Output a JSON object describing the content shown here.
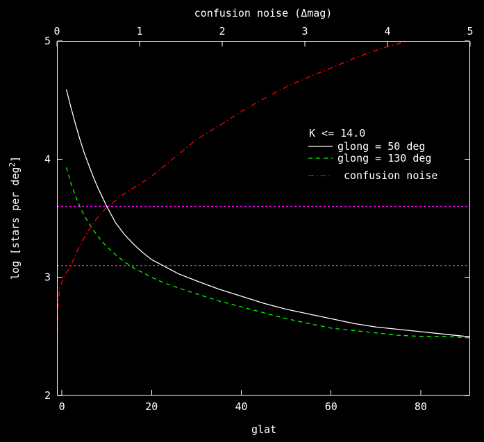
{
  "figure": {
    "background": "#000000",
    "foreground": "#ffffff",
    "axes": {
      "top": {
        "title": "confusion noise (Δmag)",
        "tick_labels": [
          "0",
          "1",
          "2",
          "3",
          "4",
          "5"
        ],
        "tick_values": [
          0,
          1,
          2,
          3,
          4,
          5
        ]
      },
      "bottom": {
        "title": "glat",
        "tick_labels": [
          "0",
          "20",
          "40",
          "60",
          "80"
        ],
        "tick_values": [
          0,
          20,
          40,
          60,
          80
        ]
      },
      "left": {
        "title_prefix": "log [stars per deg",
        "title_sup": "2",
        "title_suffix": "]",
        "tick_labels": [
          "5",
          "4",
          "3",
          "2"
        ],
        "tick_values": [
          5,
          4,
          3,
          2
        ]
      }
    },
    "legend": {
      "header": "K <= 14.0",
      "items": [
        {
          "label": "glong = 50 deg",
          "color": "#ffffff",
          "style": "solid"
        },
        {
          "label": "glong = 130 deg",
          "color": "#00ff00",
          "style": "dashed"
        },
        {
          "label": "confusion noise",
          "color": "#ff0000",
          "style": "dashdot"
        }
      ]
    }
  },
  "chart_data": {
    "type": "line",
    "title": "",
    "xlabel": "glat",
    "ylabel": "log [stars per deg^2]",
    "x2label": "confusion noise (Δmag)",
    "xlim": [
      -1.1,
      91
    ],
    "x2lim": [
      0,
      5
    ],
    "ylim": [
      2,
      5
    ],
    "grid": false,
    "legend_position": "inside upper right",
    "series": [
      {
        "name": "glong = 50 deg",
        "axis": "bottom",
        "color": "#ffffff",
        "style": "solid",
        "x": [
          1,
          2,
          3,
          4,
          5,
          6,
          7,
          8,
          9,
          10,
          12,
          14,
          16,
          18,
          20,
          23,
          26,
          30,
          35,
          40,
          45,
          50,
          55,
          60,
          65,
          70,
          75,
          80,
          85,
          90,
          91
        ],
        "y": [
          4.59,
          4.44,
          4.3,
          4.17,
          4.05,
          3.95,
          3.85,
          3.76,
          3.68,
          3.6,
          3.46,
          3.36,
          3.28,
          3.21,
          3.15,
          3.09,
          3.03,
          2.97,
          2.9,
          2.84,
          2.78,
          2.73,
          2.69,
          2.65,
          2.61,
          2.58,
          2.56,
          2.54,
          2.52,
          2.5,
          2.5
        ]
      },
      {
        "name": "glong = 130 deg",
        "axis": "bottom",
        "color": "#00ff00",
        "style": "dashed",
        "x": [
          1,
          2,
          3,
          4,
          5,
          6,
          7,
          8,
          9,
          10,
          12,
          14,
          16,
          18,
          20,
          23,
          26,
          30,
          35,
          40,
          45,
          50,
          55,
          60,
          65,
          70,
          75,
          80,
          85,
          90,
          91
        ],
        "y": [
          3.93,
          3.8,
          3.69,
          3.6,
          3.52,
          3.46,
          3.4,
          3.35,
          3.3,
          3.26,
          3.19,
          3.13,
          3.08,
          3.04,
          3.0,
          2.95,
          2.91,
          2.86,
          2.8,
          2.75,
          2.7,
          2.65,
          2.61,
          2.57,
          2.55,
          2.53,
          2.51,
          2.5,
          2.5,
          2.49,
          2.49
        ]
      },
      {
        "name": "confusion noise",
        "axis": "top",
        "color": "#ff0000",
        "style": "dashdot",
        "x": [
          0.0,
          0.01,
          0.03,
          0.08,
          0.17,
          0.25,
          0.34,
          0.45,
          0.6,
          0.8,
          1.0,
          1.12,
          1.4,
          1.68,
          2.0,
          2.25,
          2.5,
          2.8,
          3.1,
          3.35,
          3.62,
          3.9,
          4.24
        ],
        "y": [
          2.22,
          2.72,
          2.9,
          3.0,
          3.1,
          3.23,
          3.35,
          3.47,
          3.59,
          3.7,
          3.79,
          3.84,
          4.0,
          4.16,
          4.3,
          4.41,
          4.51,
          4.62,
          4.71,
          4.78,
          4.86,
          4.93,
          5.0
        ]
      }
    ],
    "reference_lines": [
      {
        "y": 3.6,
        "color": "#ff00ff",
        "style": "dotted"
      },
      {
        "y": 3.1,
        "color": "#ff00ff",
        "style": "dotted"
      }
    ]
  }
}
